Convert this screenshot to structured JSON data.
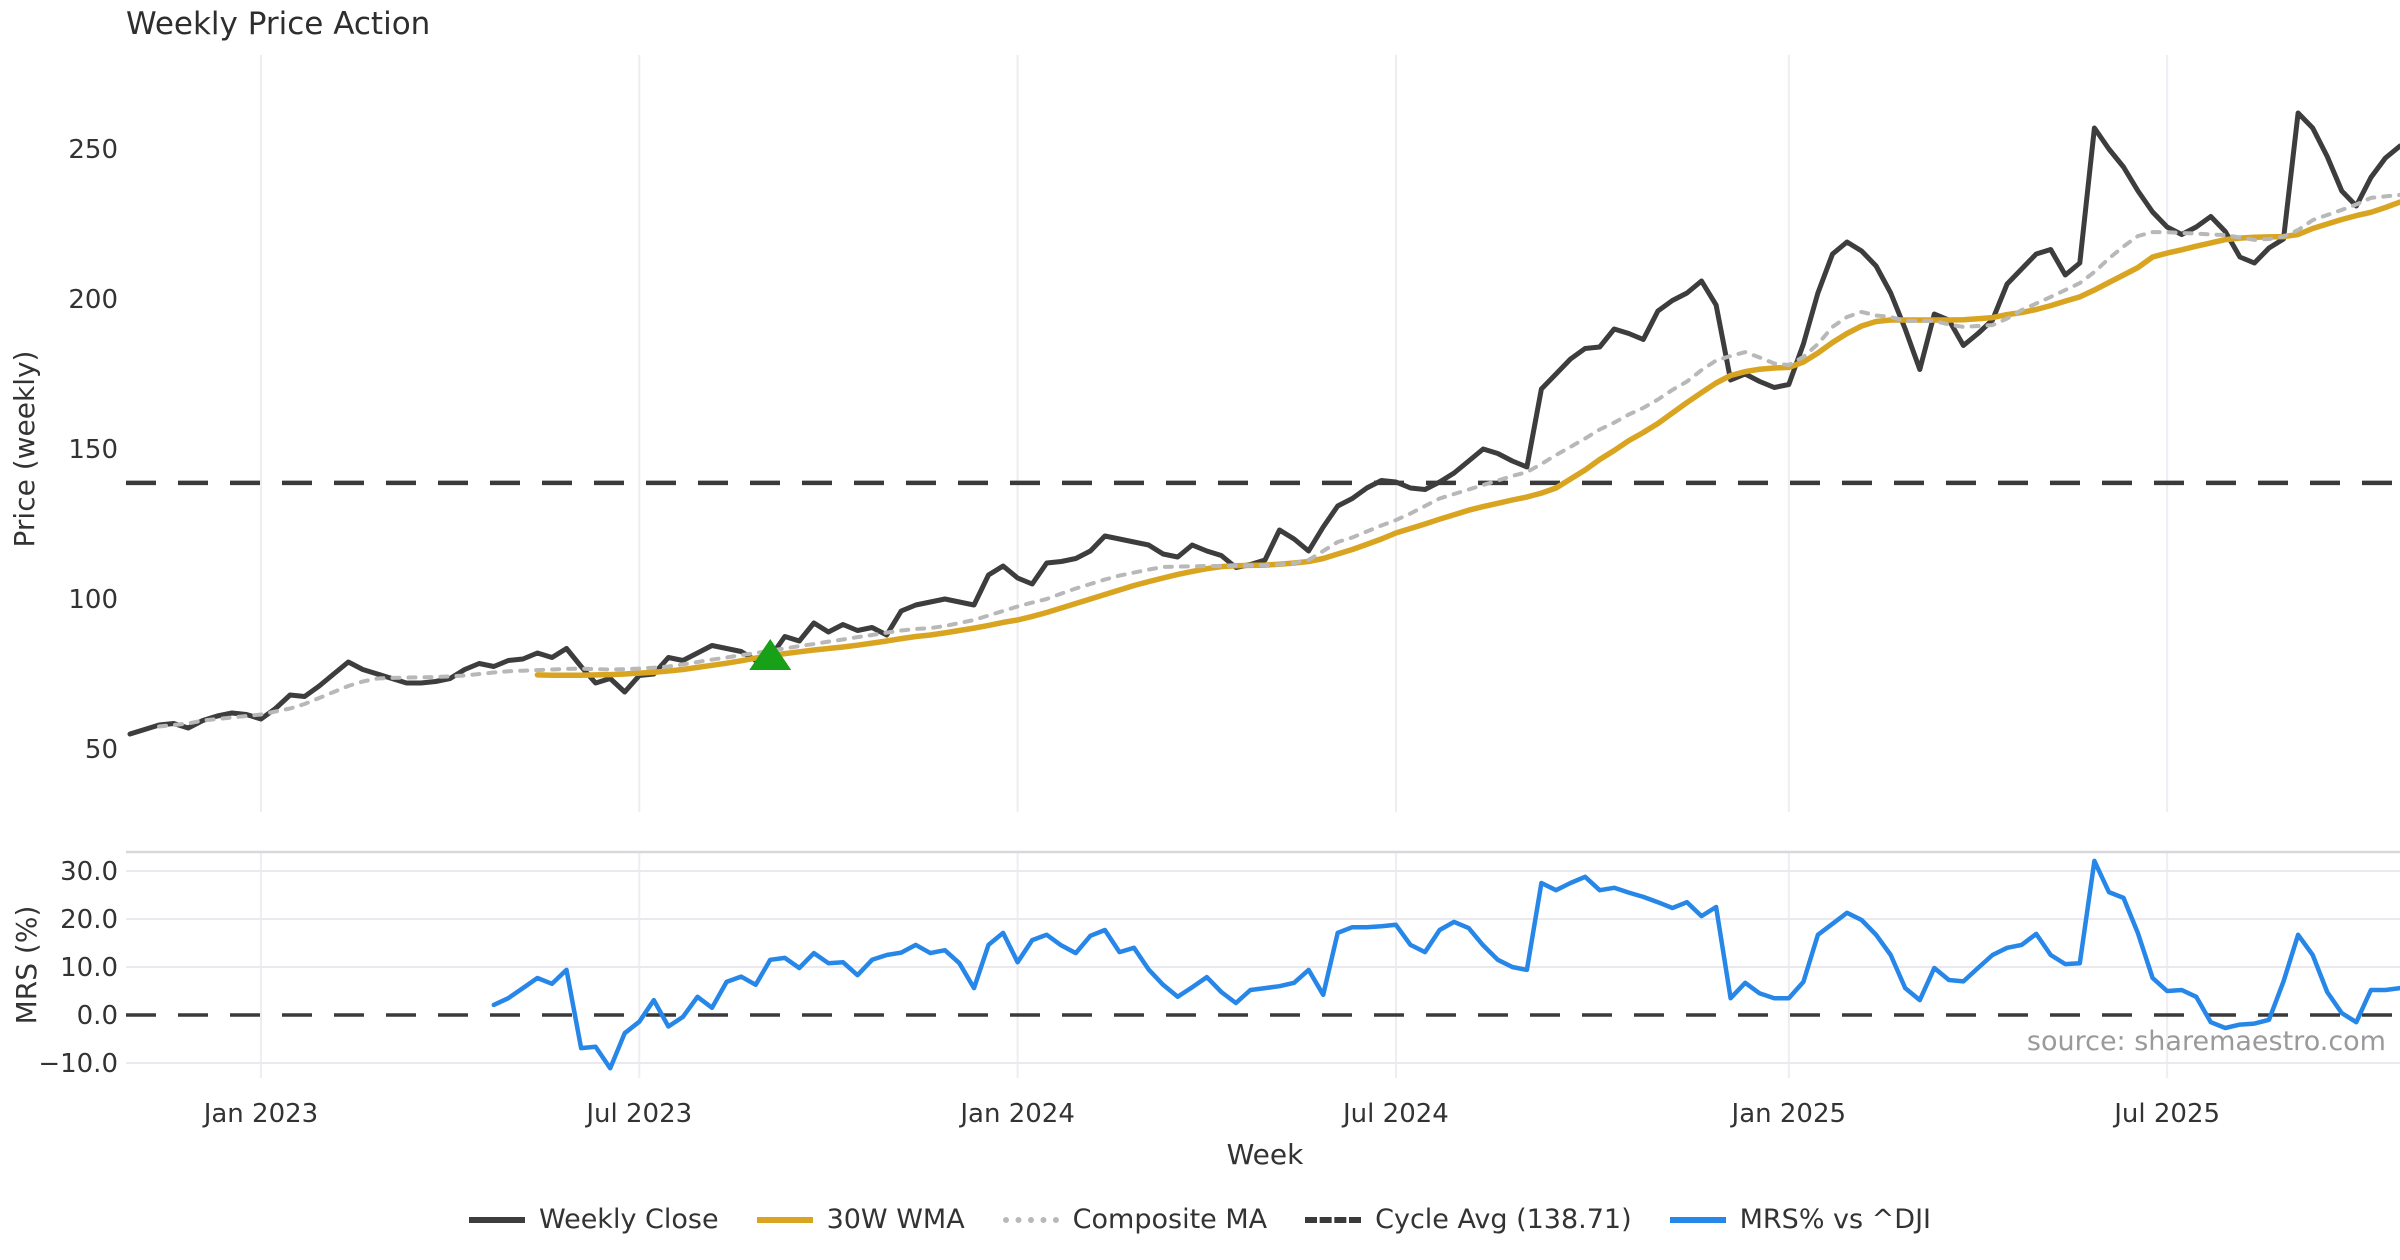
{
  "title": "Weekly Price Action",
  "source_note": "source: sharemaestro.com",
  "colors": {
    "weekly_close": "#3d3d3d",
    "wma_30w": "#d9a521",
    "composite_ma": "#b8b8b8",
    "cycle_avg": "#3a3a3a",
    "mrs": "#2787e8",
    "signal_marker": "#18a018",
    "gridline": "#ededf2",
    "panel_border": "#d7d7dc",
    "tick_text": "#333333"
  },
  "chart_data": {
    "type": "line",
    "title": "Weekly Price Action",
    "xlabel": "Week",
    "x_axis": {
      "tick_labels": [
        "Jan 2023",
        "Jul 2023",
        "Jan 2024",
        "Jul 2024",
        "Jan 2025",
        "Jul 2025"
      ],
      "tick_week_indices": [
        9,
        35,
        61,
        87,
        114,
        140
      ],
      "weeks_total": 157
    },
    "panels": [
      {
        "ylabel": "Price (weekly)",
        "ytick_labels": [
          "250",
          "200",
          "150",
          "100",
          "50"
        ],
        "ytick_values": [
          250,
          200,
          150,
          100,
          50
        ],
        "ylim": [
          38,
          272
        ]
      },
      {
        "ylabel": "MRS (%)",
        "ytick_labels": [
          "30.0",
          "20.0",
          "10.0",
          "0.0",
          "−10.0"
        ],
        "ytick_values": [
          30,
          20,
          10,
          0,
          -10
        ],
        "grid_values": [
          30,
          20,
          10,
          -10
        ],
        "ylim": [
          -13,
          34
        ]
      }
    ],
    "series": [
      {
        "id": "weekly_close",
        "name": "Weekly Close",
        "panel": 0,
        "style": "solid",
        "start_week": 0,
        "values": [
          55.0,
          56.5,
          58.0,
          58.5,
          57.0,
          59.5,
          61.0,
          62.0,
          61.5,
          60.0,
          63.5,
          68.0,
          67.5,
          71.0,
          75.0,
          79.0,
          76.5,
          75.0,
          73.5,
          72.0,
          72.0,
          72.5,
          73.5,
          76.5,
          78.5,
          77.5,
          79.5,
          80.0,
          82.0,
          80.5,
          83.5,
          77.5,
          72.0,
          73.5,
          69.0,
          74.5,
          75.0,
          80.5,
          79.5,
          82.0,
          84.5,
          83.5,
          82.5,
          79.5,
          80.5,
          87.5,
          86.0,
          92.0,
          89.0,
          91.5,
          89.5,
          90.5,
          88.0,
          96.0,
          98.0,
          99.0,
          100.0,
          99.0,
          98.0,
          108.0,
          111.0,
          107.0,
          105.0,
          112.0,
          112.5,
          113.5,
          116.0,
          121.0,
          120.0,
          119.0,
          118.0,
          115.0,
          114.0,
          118.0,
          116.0,
          114.5,
          110.5,
          111.5,
          113.0,
          123.0,
          120.0,
          116.0,
          124.0,
          131.0,
          133.5,
          137.0,
          139.5,
          139.0,
          137.0,
          136.5,
          139.0,
          142.0,
          146.0,
          150.0,
          148.5,
          146.0,
          144.0,
          170.0,
          175.0,
          180.0,
          183.5,
          184.0,
          190.0,
          188.5,
          186.5,
          196.0,
          199.5,
          202.0,
          206.0,
          198.0,
          173.0,
          175.0,
          172.5,
          170.5,
          171.5,
          185.0,
          202.0,
          215.0,
          219.0,
          216.0,
          211.0,
          202.0,
          190.0,
          176.5,
          195.0,
          193.0,
          184.5,
          188.5,
          193.0,
          205.0,
          210.0,
          215.0,
          216.5,
          208.0,
          212.0,
          257.0,
          250.0,
          244.0,
          236.0,
          229.0,
          224.0,
          221.5,
          224.0,
          227.5,
          222.5,
          214.0,
          212.0,
          217.0,
          220.0,
          262.0,
          257.0,
          247.5,
          236.0,
          231.0,
          240.5,
          247.0,
          251.0
        ]
      },
      {
        "id": "wma_30w",
        "name": "30W WMA",
        "panel": 0,
        "style": "solid",
        "start_week": 28,
        "values": [
          74.7,
          74.6,
          74.6,
          74.6,
          74.7,
          74.8,
          75.0,
          75.3,
          75.6,
          76.0,
          76.5,
          77.2,
          77.9,
          78.6,
          79.4,
          80.3,
          81.1,
          81.8,
          82.4,
          83.0,
          83.5,
          84.0,
          84.6,
          85.3,
          86.0,
          86.8,
          87.5,
          88.0,
          88.7,
          89.5,
          90.3,
          91.2,
          92.2,
          93.0,
          94.2,
          95.5,
          97.0,
          98.5,
          100.0,
          101.5,
          103.0,
          104.5,
          105.8,
          107.0,
          108.2,
          109.2,
          110.1,
          110.8,
          111.1,
          111.2,
          111.3,
          111.6,
          112.0,
          112.5,
          113.5,
          115.0,
          116.5,
          118.2,
          120.0,
          122.0,
          123.5,
          125.0,
          126.6,
          128.1,
          129.6,
          130.8,
          131.9,
          133.0,
          134.0,
          135.3,
          137.0,
          140.0,
          143.0,
          146.5,
          149.5,
          152.8,
          155.5,
          158.5,
          162.0,
          165.5,
          168.8,
          172.0,
          174.5,
          175.8,
          176.6,
          177.0,
          177.2,
          179.0,
          182.0,
          185.5,
          188.5,
          191.0,
          192.5,
          193.0,
          193.0,
          193.0,
          193.0,
          193.0,
          193.1,
          193.4,
          193.8,
          194.8,
          195.5,
          196.5,
          197.8,
          199.3,
          200.7,
          203.0,
          205.5,
          208.0,
          210.5,
          214.0,
          215.3,
          216.4,
          217.6,
          218.7,
          219.8,
          220.3,
          220.6,
          220.7,
          220.8,
          221.5,
          223.5,
          225.0,
          226.5,
          227.8,
          228.9,
          230.5,
          232.3
        ]
      },
      {
        "id": "composite_ma",
        "name": "Composite MA",
        "panel": 0,
        "style": "dotted",
        "start_week": 2,
        "values": [
          57.5,
          58.0,
          58.5,
          59.5,
          60.0,
          60.5,
          61.0,
          61.5,
          62.5,
          63.5,
          65.0,
          67.0,
          69.0,
          71.0,
          72.5,
          73.5,
          73.7,
          73.8,
          73.9,
          74.0,
          74.2,
          74.5,
          75.0,
          75.5,
          75.9,
          76.1,
          76.3,
          76.5,
          76.7,
          76.8,
          76.6,
          76.5,
          76.6,
          76.8,
          77.1,
          77.5,
          78.2,
          79.0,
          79.8,
          80.5,
          81.3,
          82.0,
          82.8,
          83.5,
          84.3,
          85.0,
          85.8,
          86.5,
          87.3,
          88.0,
          88.8,
          89.5,
          90.0,
          90.3,
          91.0,
          92.0,
          93.0,
          94.5,
          96.0,
          97.5,
          98.8,
          100.0,
          101.8,
          103.5,
          105.0,
          106.5,
          107.8,
          108.8,
          109.8,
          110.7,
          110.8,
          110.9,
          111.0,
          111.0,
          111.1,
          111.2,
          111.3,
          111.5,
          112.0,
          113.0,
          116.0,
          119.0,
          120.5,
          122.5,
          124.5,
          126.3,
          128.5,
          131.0,
          133.5,
          135.0,
          136.5,
          138.0,
          139.5,
          141.0,
          142.3,
          145.0,
          148.0,
          150.7,
          153.5,
          156.5,
          158.8,
          161.5,
          163.7,
          166.5,
          169.7,
          172.5,
          176.3,
          179.5,
          181.0,
          182.3,
          180.5,
          178.5,
          178.0,
          180.7,
          185.0,
          190.7,
          194.0,
          195.7,
          194.5,
          194.0,
          192.7,
          192.7,
          192.7,
          191.5,
          190.7,
          191.0,
          191.3,
          193.5,
          196.3,
          198.5,
          200.7,
          203.0,
          205.3,
          209.0,
          213.5,
          217.5,
          221.0,
          222.3,
          222.3,
          222.0,
          221.8,
          221.5,
          221.3,
          220.5,
          219.7,
          220.0,
          220.8,
          223.0,
          226.3,
          228.0,
          229.7,
          231.5,
          233.7,
          234.2,
          234.7
        ]
      },
      {
        "id": "mrs_pct",
        "name": "MRS% vs ^DJI",
        "panel": 1,
        "style": "solid",
        "start_week": 25,
        "values": [
          2.1,
          3.5,
          5.6,
          7.7,
          6.5,
          9.4,
          -6.9,
          -6.6,
          -11.1,
          -3.8,
          -1.4,
          3.1,
          -2.4,
          -0.4,
          3.8,
          1.5,
          6.9,
          8.0,
          6.3,
          11.5,
          11.9,
          9.8,
          12.9,
          10.8,
          11.0,
          8.3,
          11.5,
          12.5,
          13.0,
          14.6,
          12.9,
          13.5,
          10.8,
          5.6,
          14.6,
          17.1,
          11.0,
          15.6,
          16.7,
          14.5,
          12.9,
          16.5,
          17.7,
          13.1,
          14.0,
          9.5,
          6.3,
          3.8,
          5.8,
          7.9,
          4.8,
          2.5,
          5.2,
          5.6,
          6.0,
          6.7,
          9.4,
          4.2,
          17.1,
          18.3,
          18.3,
          18.5,
          18.8,
          14.6,
          13.1,
          17.7,
          19.4,
          18.1,
          14.5,
          11.5,
          10.0,
          9.4,
          27.5,
          26.0,
          27.5,
          28.8,
          26.0,
          26.5,
          25.5,
          24.6,
          23.5,
          22.3,
          23.5,
          20.6,
          22.5,
          3.5,
          6.7,
          4.5,
          3.5,
          3.5,
          6.9,
          16.7,
          19.0,
          21.3,
          19.8,
          16.7,
          12.5,
          5.6,
          3.1,
          9.8,
          7.3,
          7.0,
          9.8,
          12.5,
          14.0,
          14.6,
          16.9,
          12.5,
          10.6,
          10.8,
          32.1,
          25.6,
          24.4,
          17.0,
          7.7,
          5.0,
          5.2,
          3.8,
          -1.5,
          -2.7,
          -2.0,
          -1.8,
          -1.0,
          7.0,
          16.7,
          12.5,
          4.8,
          0.4,
          -1.5,
          5.2,
          5.2,
          5.6
        ]
      }
    ],
    "reference_lines": [
      {
        "id": "cycle_avg",
        "name": "Cycle Avg (138.71)",
        "panel": 0,
        "value": 138.71,
        "style": "dashed"
      },
      {
        "id": "zero_line",
        "panel": 1,
        "value": 0,
        "style": "dashed"
      }
    ],
    "signal_marker": {
      "shape": "triangle-up",
      "week": 44,
      "price": 81,
      "meaning": "buy-signal"
    }
  },
  "legend": [
    {
      "label": "Weekly Close",
      "swatch": "solid",
      "color": "#3d3d3d"
    },
    {
      "label": "30W WMA",
      "swatch": "solid",
      "color": "#d9a521"
    },
    {
      "label": "Composite MA",
      "swatch": "dotted",
      "color": "#b8b8b8"
    },
    {
      "label": "Cycle Avg (138.71)",
      "swatch": "dashed",
      "color": "#3a3a3a"
    },
    {
      "label": "MRS% vs ^DJI",
      "swatch": "solid",
      "color": "#2787e8"
    }
  ]
}
